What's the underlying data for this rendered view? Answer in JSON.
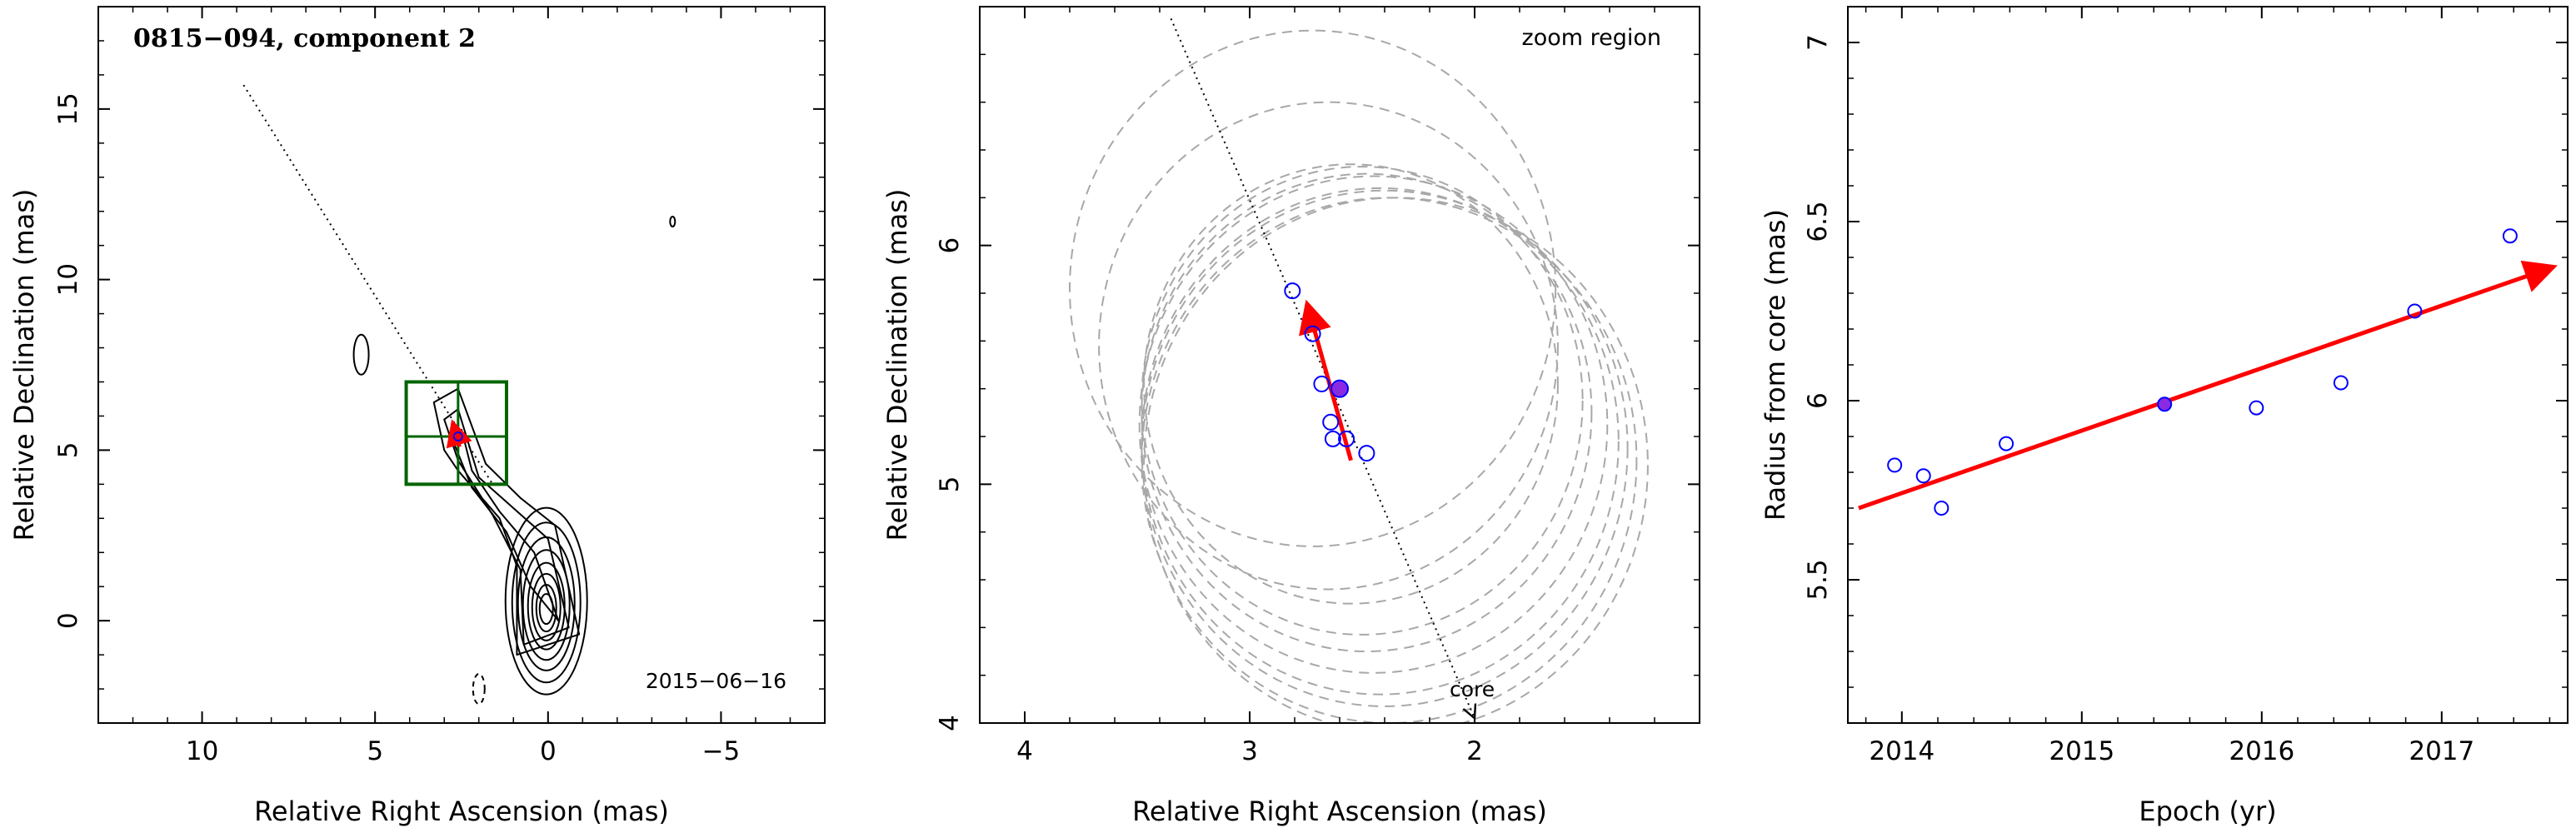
{
  "chart_data": [
    {
      "type": "scatter",
      "title": "0815−094, component 2",
      "date_label": "2015−06−16",
      "xlabel": "Relative Right Ascension (mas)",
      "ylabel": "Relative Declination (mas)",
      "xlim": [
        13,
        -8
      ],
      "ylim": [
        -3,
        18
      ],
      "xticks": [
        10,
        5,
        0,
        -5
      ],
      "xtick_labels": [
        "10",
        "5",
        "0",
        "−5"
      ],
      "yticks": [
        0,
        5,
        10,
        15
      ],
      "ytick_labels": [
        "0",
        "5",
        "10",
        "15"
      ],
      "contour_center": [
        0.05,
        0.3
      ],
      "zoom_box": {
        "x": [
          4.1,
          1.2
        ],
        "y": [
          4.0,
          7.0
        ],
        "cross": [
          2.6,
          5.4
        ]
      },
      "jet_line": [
        [
          8.8,
          15.7
        ],
        [
          1.6,
          4.0
        ]
      ],
      "component_position": [
        2.6,
        5.4
      ],
      "motion_arrow": [
        [
          2.55,
          5.1
        ],
        [
          2.73,
          5.72
        ]
      ]
    },
    {
      "type": "scatter",
      "annotation": "zoom region",
      "core_label": "core",
      "xlabel": "Relative Right Ascension (mas)",
      "ylabel": "Relative Declination (mas)",
      "xlim": [
        4.2,
        1.0
      ],
      "ylim": [
        4.0,
        7.0
      ],
      "xticks": [
        4,
        3,
        2
      ],
      "xtick_labels": [
        "4",
        "3",
        "2"
      ],
      "yticks": [
        4,
        5,
        6
      ],
      "ytick_labels": [
        "4",
        "5",
        "6"
      ],
      "points": [
        {
          "x": 2.81,
          "y": 5.81
        },
        {
          "x": 2.72,
          "y": 5.63
        },
        {
          "x": 2.68,
          "y": 5.42
        },
        {
          "x": 2.64,
          "y": 5.26
        },
        {
          "x": 2.63,
          "y": 5.19
        },
        {
          "x": 2.57,
          "y": 5.19
        },
        {
          "x": 2.48,
          "y": 5.13
        }
      ],
      "reference_point": {
        "x": 2.6,
        "y": 5.4
      },
      "motion_arrow": [
        [
          2.55,
          5.1
        ],
        [
          2.74,
          5.74
        ]
      ],
      "jet_line": [
        [
          3.35,
          6.95
        ],
        [
          2.0,
          4.02
        ]
      ],
      "beam_circles": [
        {
          "cx": 2.72,
          "cy": 5.82,
          "r": 1.08
        },
        {
          "cx": 2.65,
          "cy": 5.58,
          "r": 1.02
        },
        {
          "cx": 2.55,
          "cy": 5.42,
          "r": 0.92
        },
        {
          "cx": 2.5,
          "cy": 5.35,
          "r": 0.98
        },
        {
          "cx": 2.48,
          "cy": 5.3,
          "r": 1.0
        },
        {
          "cx": 2.45,
          "cy": 5.25,
          "r": 1.04
        },
        {
          "cx": 2.42,
          "cy": 5.18,
          "r": 1.06
        },
        {
          "cx": 2.4,
          "cy": 5.15,
          "r": 1.08
        },
        {
          "cx": 2.38,
          "cy": 5.1,
          "r": 1.1
        },
        {
          "cx": 2.35,
          "cy": 5.08,
          "r": 1.12
        }
      ]
    },
    {
      "type": "scatter",
      "xlabel": "Epoch (yr)",
      "ylabel": "Radius from core (mas)",
      "xlim": [
        2013.7,
        2017.7
      ],
      "ylim": [
        5.1,
        7.1
      ],
      "xticks": [
        2014,
        2015,
        2016,
        2017
      ],
      "xtick_labels": [
        "2014",
        "2015",
        "2016",
        "2017"
      ],
      "yticks": [
        5.5,
        6.0,
        6.5,
        7.0
      ],
      "ytick_labels": [
        "5.5",
        "6",
        "6.5",
        "7"
      ],
      "points": [
        {
          "x": 2013.96,
          "y": 5.82
        },
        {
          "x": 2014.12,
          "y": 5.79
        },
        {
          "x": 2014.22,
          "y": 5.7
        },
        {
          "x": 2014.58,
          "y": 5.88
        },
        {
          "x": 2015.97,
          "y": 5.98
        },
        {
          "x": 2016.44,
          "y": 6.05
        },
        {
          "x": 2016.85,
          "y": 6.25
        },
        {
          "x": 2017.38,
          "y": 6.46
        }
      ],
      "reference_point": {
        "x": 2015.46,
        "y": 5.99
      },
      "fit_arrow": [
        [
          2013.76,
          5.7
        ],
        [
          2017.6,
          6.37
        ]
      ]
    }
  ]
}
